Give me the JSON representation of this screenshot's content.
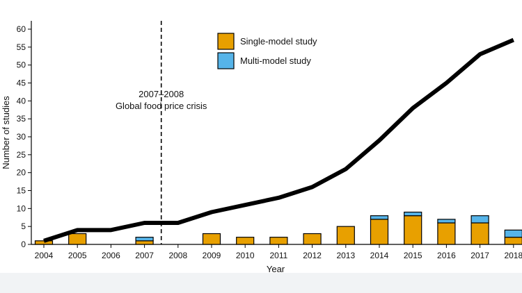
{
  "chart_data": {
    "type": "bar",
    "title": "",
    "xlabel": "Year",
    "ylabel": "Number of studies",
    "ylim": [
      0,
      60
    ],
    "yticks": [
      0,
      5,
      10,
      15,
      20,
      25,
      30,
      35,
      40,
      45,
      50,
      55,
      60
    ],
    "categories": [
      "2004",
      "2005",
      "2006",
      "2007",
      "2008",
      "2009",
      "2010",
      "2011",
      "2012",
      "2013",
      "2014",
      "2015",
      "2016",
      "2017",
      "2018"
    ],
    "series": [
      {
        "name": "Single-model study",
        "color": "#e8a000",
        "values": [
          1,
          3,
          0,
          1,
          0,
          3,
          2,
          2,
          3,
          5,
          7,
          8,
          6,
          6,
          2
        ]
      },
      {
        "name": "Multi-model study",
        "color": "#56b4e9",
        "values": [
          0,
          0,
          0,
          1,
          0,
          0,
          0,
          0,
          0,
          0,
          1,
          1,
          1,
          2,
          2
        ]
      }
    ],
    "cumulative_line": {
      "name": "Cumulative number of studies",
      "color": "#000000",
      "values": [
        1,
        4,
        4,
        6,
        6,
        9,
        11,
        13,
        16,
        21,
        29,
        38,
        45,
        53,
        57
      ]
    },
    "annotations": [
      {
        "text_line1": "2007–2008",
        "text_line2": "Global food price crisis",
        "x_between": [
          "2007",
          "2008"
        ],
        "style": "dashed-vertical-line"
      }
    ],
    "legend": {
      "placement": "top-center"
    }
  }
}
